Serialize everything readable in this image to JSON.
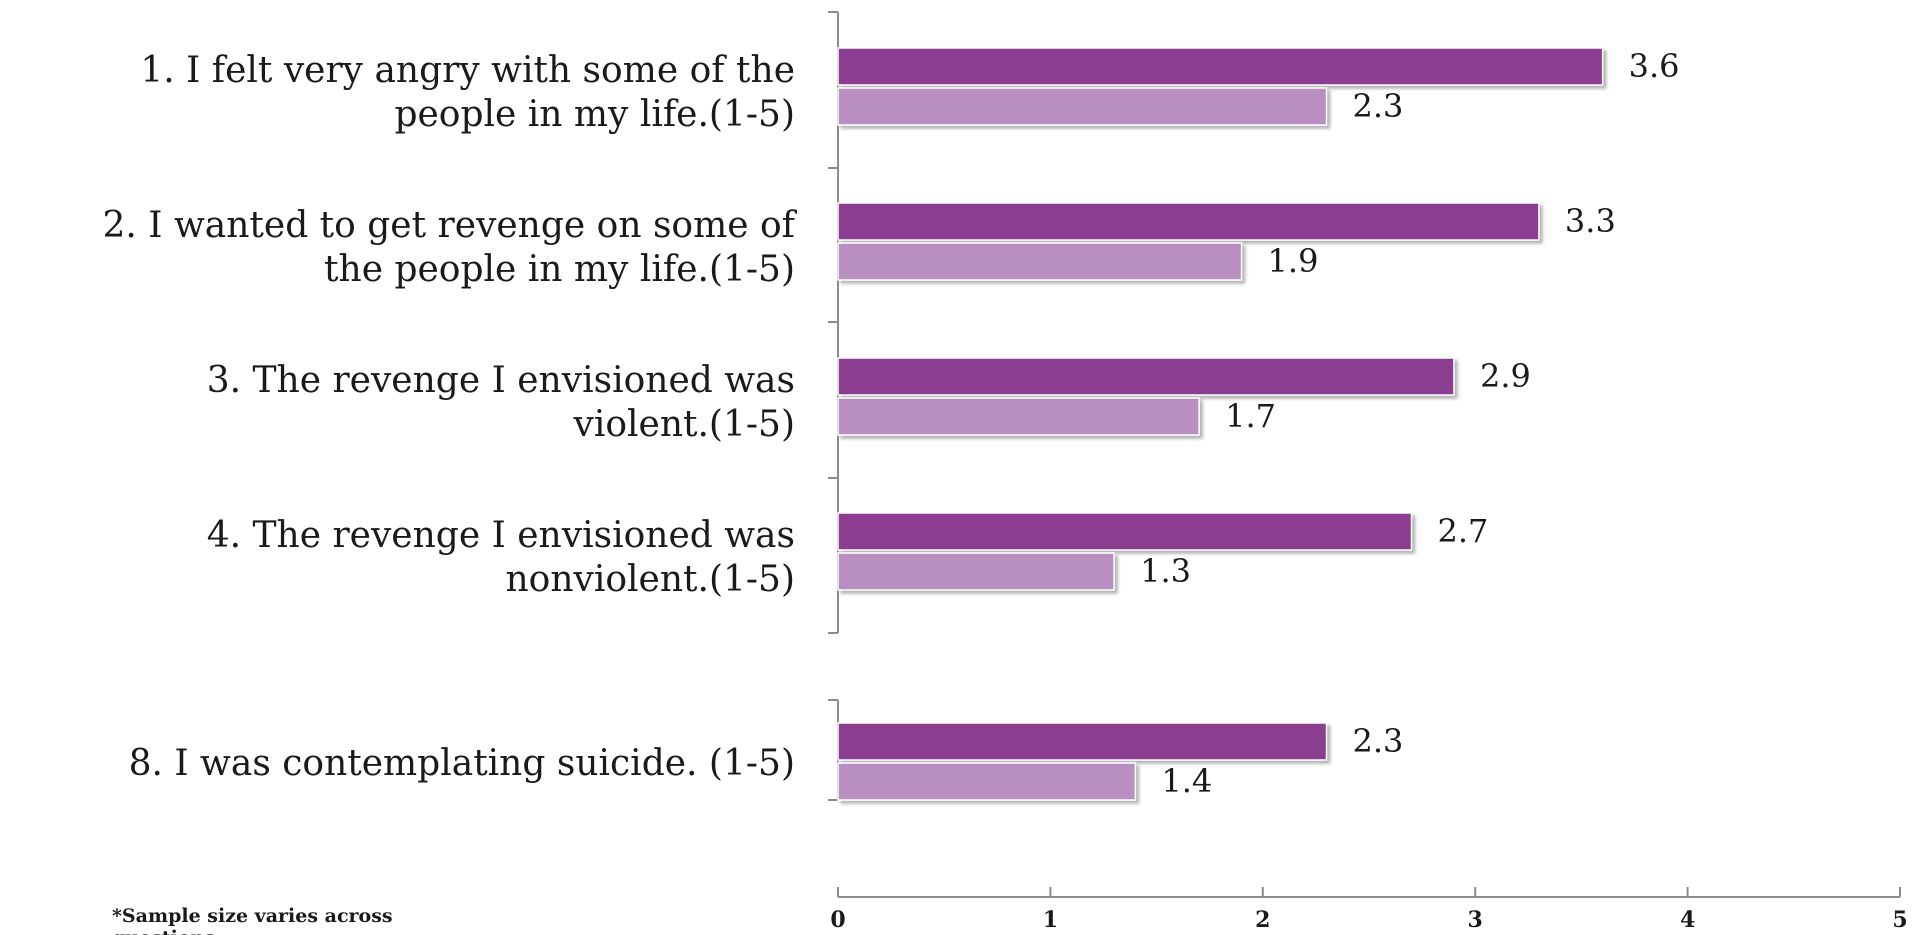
{
  "chart_data": {
    "type": "bar",
    "orientation": "horizontal",
    "categories": [
      [
        "1. I felt very angry with some of the",
        "people in my life.(1-5)"
      ],
      [
        "2. I wanted to get revenge on some of",
        "the people in my life.(1-5)"
      ],
      [
        "3. The revenge I envisioned was",
        "violent.(1-5)"
      ],
      [
        "4. The revenge I envisioned was",
        "nonviolent.(1-5)"
      ],
      [
        "8. I was contemplating suicide. (1-5)"
      ]
    ],
    "series": [
      {
        "values": [
          3.6,
          3.3,
          2.9,
          2.7,
          2.3
        ],
        "color": "#8b3e8f"
      },
      {
        "values": [
          2.3,
          1.9,
          1.7,
          1.3,
          1.4
        ],
        "color": "#b98fc2"
      }
    ],
    "xlim": [
      0,
      5
    ],
    "xticks": [
      "0",
      "1",
      "2",
      "3",
      "4",
      "5"
    ],
    "title": "",
    "xlabel": "",
    "ylabel": "",
    "legend": "none",
    "grid": false,
    "footnote": [
      "*Sample size varies across",
      "questions"
    ]
  }
}
